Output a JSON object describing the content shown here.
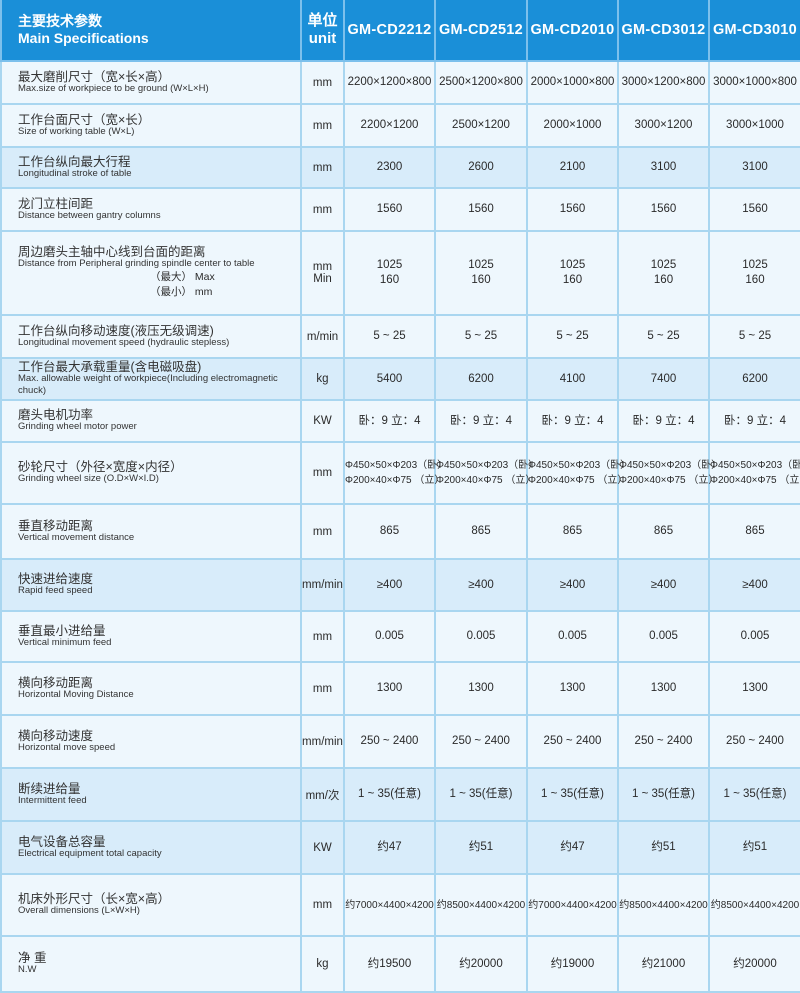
{
  "header": {
    "spec_cn": "主要技术参数",
    "spec_en": "Main Specifications",
    "unit_cn": "单位",
    "unit_en": "unit",
    "models": [
      "GM-CD2212",
      "GM-CD2512",
      "GM-CD2010",
      "GM-CD3012",
      "GM-CD3010"
    ]
  },
  "colors": {
    "header": "#1a8fd8",
    "row_light": "#eef7fd",
    "row_blue": "#d8ecfa",
    "border": "#a9d6f0"
  },
  "rows": [
    {
      "cn": "最大磨削尺寸（宽×长×高）",
      "en": "Max.size of workpiece to be ground (W×L×H)",
      "unit": [
        "mm"
      ],
      "values": [
        [
          "2200×1200×800"
        ],
        [
          "2500×1200×800"
        ],
        [
          "2000×1000×800"
        ],
        [
          "3000×1200×800"
        ],
        [
          "3000×1000×800"
        ]
      ]
    },
    {
      "cn": "工作台面尺寸（宽×长）",
      "en": "Size of working table (W×L)",
      "unit": [
        "mm"
      ],
      "values": [
        [
          "2200×1200"
        ],
        [
          "2500×1200"
        ],
        [
          "2000×1000"
        ],
        [
          "3000×1200"
        ],
        [
          "3000×1000"
        ]
      ]
    },
    {
      "cn": "工作台纵向最大行程",
      "en": "Longitudinal stroke of table",
      "unit": [
        "mm"
      ],
      "values": [
        [
          "2300"
        ],
        [
          "2600"
        ],
        [
          "2100"
        ],
        [
          "3100"
        ],
        [
          "3100"
        ]
      ]
    },
    {
      "cn": "龙门立柱间距",
      "en": "Distance between gantry columns",
      "unit": [
        "mm"
      ],
      "values": [
        [
          "1560"
        ],
        [
          "1560"
        ],
        [
          "1560"
        ],
        [
          "1560"
        ],
        [
          "1560"
        ]
      ]
    },
    {
      "cn": "周边磨头主轴中心线到台面的距离",
      "en": "Distance from Peripheral grinding spindle center to table",
      "sub": [
        "（最大） Max",
        "（最小） mm"
      ],
      "unit": [
        "mm",
        "Min"
      ],
      "values": [
        [
          "1025",
          "160"
        ],
        [
          "1025",
          "160"
        ],
        [
          "1025",
          "160"
        ],
        [
          "1025",
          "160"
        ],
        [
          "1025",
          "160"
        ]
      ]
    },
    {
      "cn": "工作台纵向移动速度(液压无级调速)",
      "en": "Longitudinal movement speed (hydraulic stepless)",
      "unit": [
        "m/min"
      ],
      "values": [
        [
          "5 ~ 25"
        ],
        [
          "5 ~ 25"
        ],
        [
          "5 ~ 25"
        ],
        [
          "5 ~ 25"
        ],
        [
          "5 ~ 25"
        ]
      ]
    },
    {
      "cn": "工作台最大承载重量(含电磁吸盘)",
      "en": "Max. allowable weight of workpiece(Including electromagnetic chuck)",
      "unit": [
        "kg"
      ],
      "values": [
        [
          "5400"
        ],
        [
          "6200"
        ],
        [
          "4100"
        ],
        [
          "7400"
        ],
        [
          "6200"
        ]
      ]
    },
    {
      "cn": "磨头电机功率",
      "en": "Grinding wheel motor power",
      "unit": [
        "KW"
      ],
      "values": [
        [
          "卧：9  立：4"
        ],
        [
          "卧：9  立：4"
        ],
        [
          "卧：9  立：4"
        ],
        [
          "卧：9  立：4"
        ],
        [
          "卧：9  立：4"
        ]
      ]
    },
    {
      "cn": "砂轮尺寸（外径×宽度×内径）",
      "en": "Grinding wheel size (O.D×W×I.D)",
      "unit": [
        "mm"
      ],
      "small": true,
      "values": [
        [
          "Φ450×50×Φ203（卧）",
          "Φ200×40×Φ75 （立）"
        ],
        [
          "Φ450×50×Φ203（卧）",
          "Φ200×40×Φ75 （立）"
        ],
        [
          "Φ450×50×Φ203（卧）",
          "Φ200×40×Φ75 （立）"
        ],
        [
          "Φ450×50×Φ203（卧）",
          "Φ200×40×Φ75 （立）"
        ],
        [
          "Φ450×50×Φ203（卧）",
          "Φ200×40×Φ75 （立）"
        ]
      ]
    },
    {
      "cn": "垂直移动距离",
      "en": "Vertical movement distance",
      "unit": [
        "mm"
      ],
      "values": [
        [
          "865"
        ],
        [
          "865"
        ],
        [
          "865"
        ],
        [
          "865"
        ],
        [
          "865"
        ]
      ]
    },
    {
      "cn": "快速进给速度",
      "en": "Rapid feed speed",
      "unit": [
        "mm/min"
      ],
      "values": [
        [
          "≥400"
        ],
        [
          "≥400"
        ],
        [
          "≥400"
        ],
        [
          "≥400"
        ],
        [
          "≥400"
        ]
      ]
    },
    {
      "cn": "垂直最小进给量",
      "en": "Vertical minimum feed",
      "unit": [
        "mm"
      ],
      "values": [
        [
          "0.005"
        ],
        [
          "0.005"
        ],
        [
          "0.005"
        ],
        [
          "0.005"
        ],
        [
          "0.005"
        ]
      ]
    },
    {
      "cn": "横向移动距离",
      "en": "Horizontal Moving Distance",
      "unit": [
        "mm"
      ],
      "values": [
        [
          "1300"
        ],
        [
          "1300"
        ],
        [
          "1300"
        ],
        [
          "1300"
        ],
        [
          "1300"
        ]
      ]
    },
    {
      "cn": "横向移动速度",
      "en": "Horizontal move speed",
      "unit": [
        "mm/min"
      ],
      "values": [
        [
          "250 ~ 2400"
        ],
        [
          "250 ~ 2400"
        ],
        [
          "250 ~ 2400"
        ],
        [
          "250 ~ 2400"
        ],
        [
          "250 ~ 2400"
        ]
      ]
    },
    {
      "cn": "断续进给量",
      "en": "Intermittent feed",
      "unit": [
        "mm/次"
      ],
      "values": [
        [
          "1 ~ 35(任意)"
        ],
        [
          "1 ~ 35(任意)"
        ],
        [
          "1 ~ 35(任意)"
        ],
        [
          "1 ~ 35(任意)"
        ],
        [
          "1 ~ 35(任意)"
        ]
      ]
    },
    {
      "cn": "电气设备总容量",
      "en": "Electrical equipment total capacity",
      "unit": [
        "KW"
      ],
      "values": [
        [
          "约47"
        ],
        [
          "约51"
        ],
        [
          "约47"
        ],
        [
          "约51"
        ],
        [
          "约51"
        ]
      ]
    },
    {
      "cn": "机床外形尺寸（长×宽×高）",
      "en": "Overall dimensions (L×W×H)",
      "unit": [
        "mm"
      ],
      "small": true,
      "values": [
        [
          "约7000×4400×4200"
        ],
        [
          "约8500×4400×4200"
        ],
        [
          "约7000×4400×4200"
        ],
        [
          "约8500×4400×4200"
        ],
        [
          "约8500×4400×4200"
        ]
      ]
    },
    {
      "cn": "净   重",
      "en": "N.W",
      "unit": [
        "kg"
      ],
      "values": [
        [
          "约19500"
        ],
        [
          "约20000"
        ],
        [
          "约19000"
        ],
        [
          "约21000"
        ],
        [
          "约20000"
        ]
      ]
    }
  ]
}
